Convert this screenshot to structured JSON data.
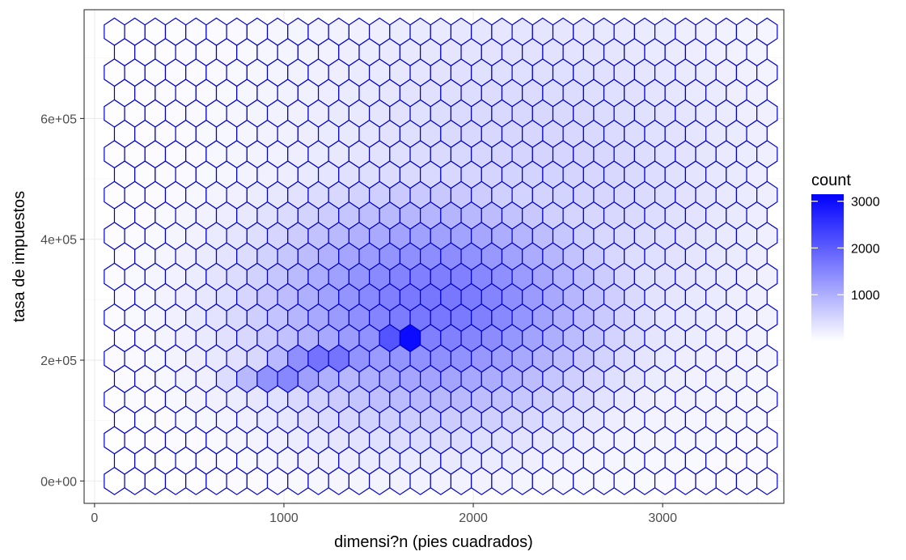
{
  "chart_data": {
    "type": "hexbin",
    "xlabel": "dimensi?n (pies cuadrados)",
    "ylabel": "tasa de impuestos",
    "xlim": [
      -55,
      3640
    ],
    "ylim": [
      -37000,
      780000
    ],
    "x_ticks": [
      {
        "value": 0,
        "label": "0"
      },
      {
        "value": 1000,
        "label": "1000"
      },
      {
        "value": 2000,
        "label": "2000"
      },
      {
        "value": 3000,
        "label": "3000"
      }
    ],
    "y_ticks": [
      {
        "value": 0,
        "label": "0e+00"
      },
      {
        "value": 200000,
        "label": "2e+05"
      },
      {
        "value": 400000,
        "label": "4e+05"
      },
      {
        "value": 600000,
        "label": "6e+05"
      }
    ],
    "grid": true,
    "hex_spacing_x": 107.7,
    "hex_spacing_y": 33800,
    "x_origin": 105,
    "y_origin": 0,
    "color_min": "#ffffff",
    "color_max": "#0000ff",
    "outline_color": "#0000cd",
    "count_max": 3150,
    "hotspots": [
      {
        "x": 1640,
        "y": 236000,
        "count": 3150,
        "spread_x": 90,
        "spread_y": 11000
      },
      {
        "x": 1230,
        "y": 196000,
        "count": 1850,
        "spread_x": 220,
        "spread_y": 24000
      },
      {
        "x": 1000,
        "y": 172000,
        "count": 1500,
        "spread_x": 190,
        "spread_y": 22000
      },
      {
        "x": 1800,
        "y": 290000,
        "count": 1700,
        "spread_x": 650,
        "spread_y": 135000
      },
      {
        "x": 2300,
        "y": 470000,
        "count": 550,
        "spread_x": 900,
        "spread_y": 260000
      }
    ],
    "legend": {
      "title": "count",
      "position": "right",
      "ticks": [
        {
          "value": 1000,
          "label": "1000"
        },
        {
          "value": 2000,
          "label": "2000"
        },
        {
          "value": 3000,
          "label": "3000"
        }
      ]
    }
  }
}
